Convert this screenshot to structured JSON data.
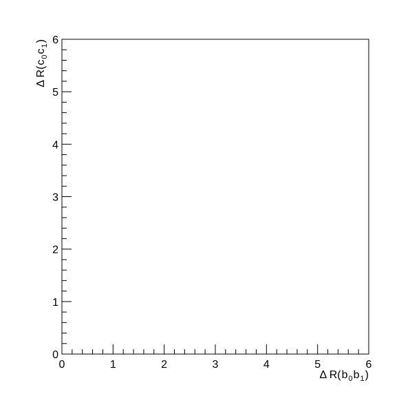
{
  "chart_data": {
    "type": "scatter",
    "title": "",
    "xlabel": {
      "prefix": "Δ R(",
      "parts": [
        {
          "t": "b"
        },
        {
          "t": "0",
          "sub": true
        },
        {
          "t": "b"
        },
        {
          "t": "1",
          "sub": true
        }
      ],
      "suffix": ")"
    },
    "ylabel": {
      "prefix": "Δ R(",
      "parts": [
        {
          "t": "c"
        },
        {
          "t": "0",
          "sub": true
        },
        {
          "t": "c"
        },
        {
          "t": "1",
          "sub": true
        }
      ],
      "suffix": ")"
    },
    "xlim": [
      0,
      6
    ],
    "ylim": [
      0,
      6
    ],
    "x_ticks": [
      "0",
      "1",
      "2",
      "3",
      "4",
      "5",
      "6"
    ],
    "y_ticks": [
      "0",
      "1",
      "2",
      "3",
      "4",
      "5",
      "6"
    ],
    "x_minor_per_major": 4,
    "y_minor_per_major": 4,
    "grid": false,
    "points": []
  }
}
